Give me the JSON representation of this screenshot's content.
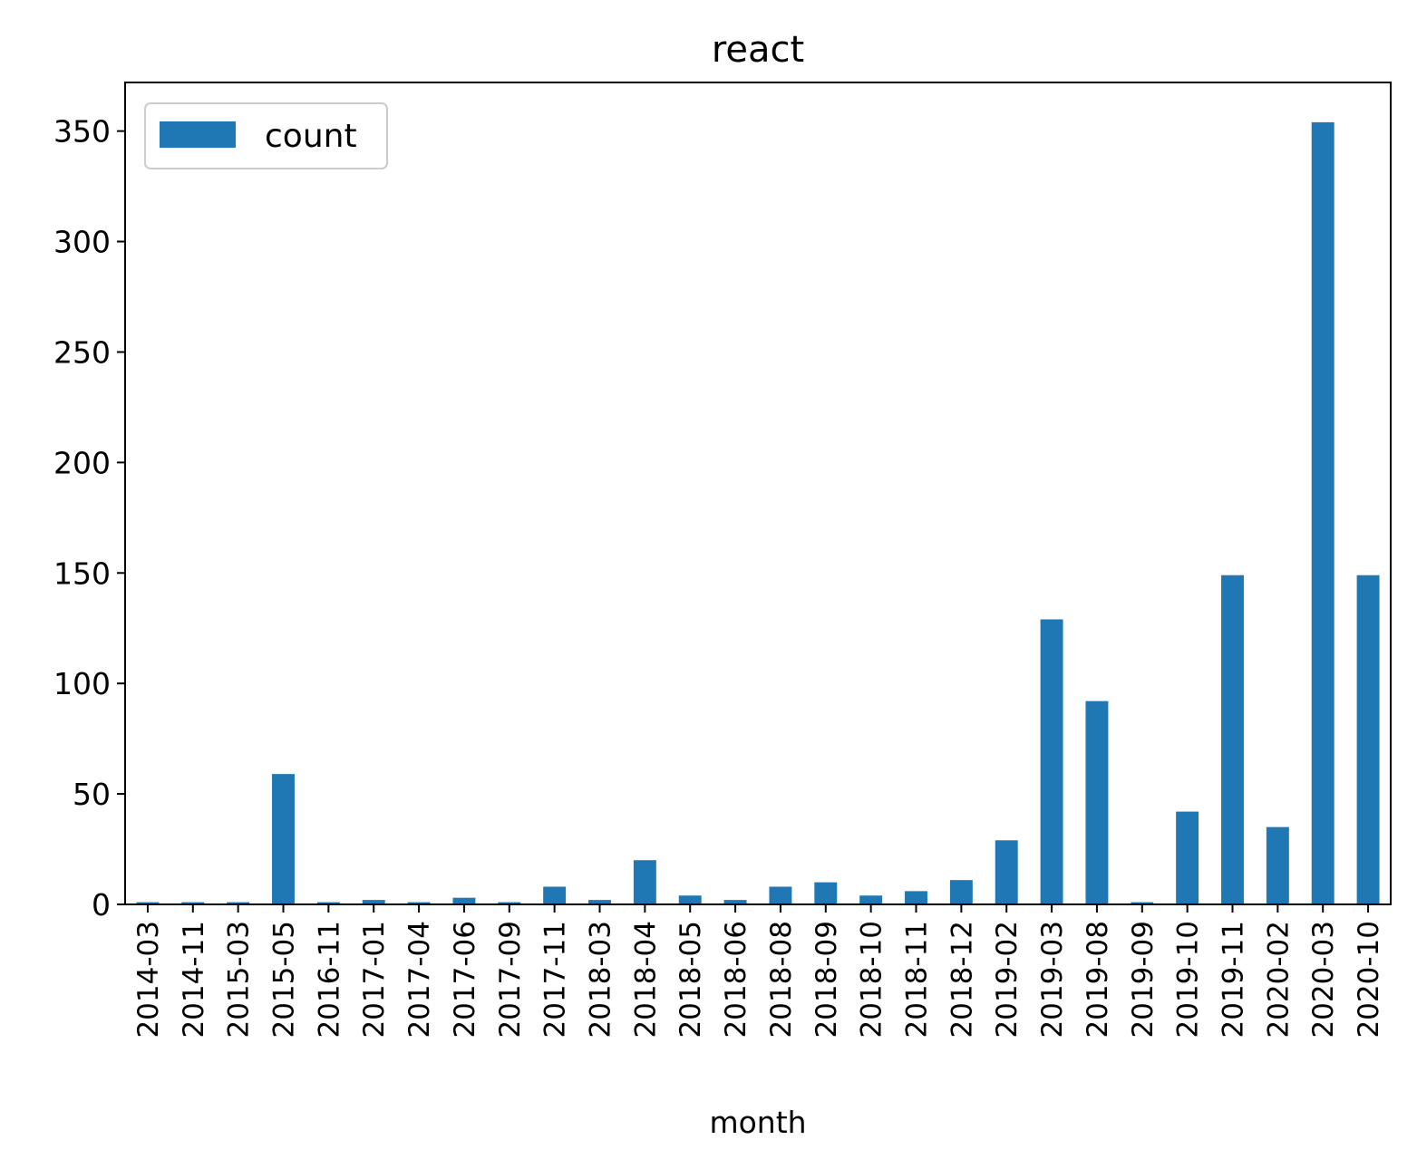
{
  "chart_data": {
    "type": "bar",
    "title": "react",
    "xlabel": "month",
    "ylabel": "",
    "ylim": [
      0,
      372
    ],
    "yticks": [
      0,
      50,
      100,
      150,
      200,
      250,
      300,
      350
    ],
    "grid": false,
    "legend": {
      "position": "upper-left",
      "entries": [
        "count"
      ]
    },
    "bar_color": "#1f77b4",
    "categories": [
      "2014-03",
      "2014-11",
      "2015-03",
      "2015-05",
      "2016-11",
      "2017-01",
      "2017-04",
      "2017-06",
      "2017-09",
      "2017-11",
      "2018-03",
      "2018-04",
      "2018-05",
      "2018-06",
      "2018-08",
      "2018-09",
      "2018-10",
      "2018-11",
      "2018-12",
      "2019-02",
      "2019-03",
      "2019-08",
      "2019-09",
      "2019-10",
      "2019-11",
      "2020-02",
      "2020-03",
      "2020-10"
    ],
    "series": [
      {
        "name": "count",
        "values": [
          1,
          1,
          1,
          59,
          1,
          2,
          1,
          3,
          1,
          8,
          2,
          20,
          4,
          2,
          8,
          10,
          4,
          6,
          11,
          29,
          129,
          92,
          1,
          42,
          149,
          35,
          354,
          149
        ]
      }
    ]
  }
}
